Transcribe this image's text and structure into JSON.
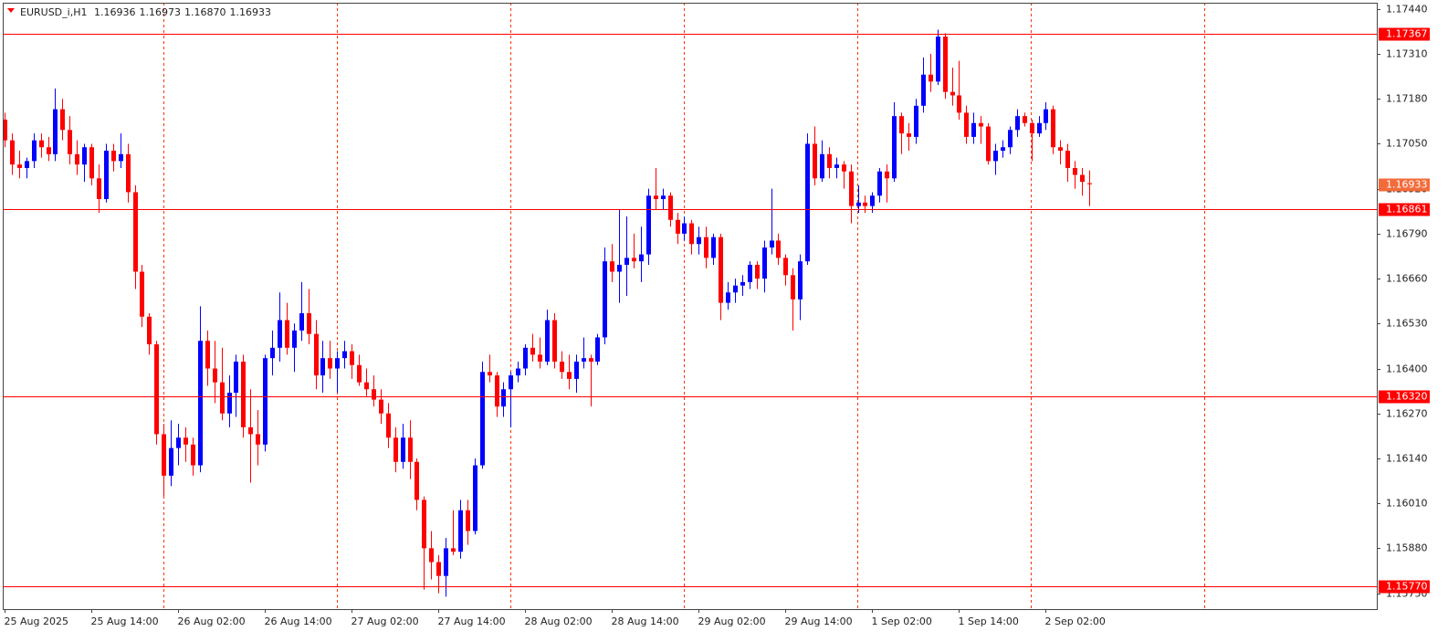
{
  "chart_data": {
    "type": "candlestick",
    "symbol": "EURUSD_i,H1",
    "info_labels": [
      "1.16936",
      "1.16973",
      "1.16870",
      "1.16933"
    ],
    "categories": [
      "25 Aug 2025",
      null,
      null,
      null,
      null,
      null,
      null,
      null,
      null,
      null,
      null,
      null,
      "25 Aug 14:00",
      null,
      null,
      null,
      null,
      null,
      null,
      null,
      null,
      null,
      null,
      null,
      "26 Aug 02:00",
      null,
      null,
      null,
      null,
      null,
      null,
      null,
      null,
      null,
      null,
      null,
      "26 Aug 14:00",
      null,
      null,
      null,
      null,
      null,
      null,
      null,
      null,
      null,
      null,
      null,
      "27 Aug 02:00",
      null,
      null,
      null,
      null,
      null,
      null,
      null,
      null,
      null,
      null,
      null,
      "27 Aug 14:00",
      null,
      null,
      null,
      null,
      null,
      null,
      null,
      null,
      null,
      null,
      null,
      "28 Aug 02:00",
      null,
      null,
      null,
      null,
      null,
      null,
      null,
      null,
      null,
      null,
      null,
      "28 Aug 14:00",
      null,
      null,
      null,
      null,
      null,
      null,
      null,
      null,
      null,
      null,
      null,
      "29 Aug 02:00",
      null,
      null,
      null,
      null,
      null,
      null,
      null,
      null,
      null,
      null,
      null,
      "29 Aug 14:00",
      null,
      null,
      null,
      null,
      null,
      null,
      null,
      null,
      null,
      null,
      null,
      "1 Sep 02:00",
      null,
      null,
      null,
      null,
      null,
      null,
      null,
      null,
      null,
      null,
      null,
      "1 Sep 14:00",
      null,
      null,
      null,
      null,
      null,
      null,
      null,
      null,
      null,
      null,
      null,
      "2 Sep 02:00",
      null,
      null,
      null,
      null,
      null,
      null
    ],
    "open": [
      1.1712,
      1.1706,
      1.1699,
      1.1698,
      1.17,
      1.1706,
      1.1704,
      1.1702,
      1.1715,
      1.1709,
      1.1702,
      1.1699,
      1.1704,
      1.1695,
      1.1689,
      1.1703,
      1.17,
      1.1702,
      1.1691,
      1.1668,
      1.1655,
      1.1647,
      1.1621,
      1.1609,
      1.1617,
      1.162,
      1.1618,
      1.1612,
      1.1648,
      1.164,
      1.1636,
      1.1627,
      1.1633,
      1.1642,
      1.1623,
      1.1621,
      1.1618,
      1.1643,
      1.1646,
      1.1654,
      1.1646,
      1.1651,
      1.1656,
      1.165,
      1.1638,
      1.1643,
      1.164,
      1.1643,
      1.1645,
      1.1641,
      1.1636,
      1.1634,
      1.1631,
      1.1627,
      1.162,
      1.1613,
      1.162,
      1.1613,
      1.1602,
      1.1588,
      1.1584,
      1.158,
      1.1588,
      1.1587,
      1.1599,
      1.1593,
      1.1612,
      1.1639,
      1.1638,
      1.1629,
      1.1634,
      1.1638,
      1.164,
      1.1646,
      1.1644,
      1.1642,
      1.1654,
      1.1642,
      1.1639,
      1.1637,
      1.1642,
      1.1643,
      1.1642,
      1.1649,
      1.1671,
      1.1668,
      1.167,
      1.1672,
      1.1671,
      1.1673,
      1.169,
      1.1689,
      1.169,
      1.1683,
      1.1679,
      1.1682,
      1.1676,
      1.1678,
      1.1672,
      1.1678,
      1.1659,
      1.1662,
      1.1664,
      1.1665,
      1.167,
      1.1666,
      1.1675,
      1.1677,
      1.1672,
      1.1667,
      1.166,
      1.1671,
      1.1705,
      1.1695,
      1.1702,
      1.1698,
      1.1699,
      1.1697,
      1.1687,
      1.1688,
      1.1687,
      1.169,
      1.1697,
      1.1695,
      1.1713,
      1.1708,
      1.1707,
      1.1716,
      1.1725,
      1.1723,
      1.1736,
      1.172,
      1.1719,
      1.1714,
      1.1707,
      1.1711,
      1.171,
      1.17,
      1.1703,
      1.1704,
      1.1709,
      1.1713,
      1.1711,
      1.1708,
      1.1711,
      1.1715,
      1.1704,
      1.1703,
      1.1698,
      1.1696,
      1.16936
    ],
    "high": [
      1.1714,
      1.1708,
      1.1703,
      1.1701,
      1.1708,
      1.1708,
      1.1707,
      1.1721,
      1.1718,
      1.1713,
      1.1706,
      1.1705,
      1.1705,
      1.1699,
      1.1705,
      1.1705,
      1.1708,
      1.1705,
      1.1693,
      1.167,
      1.1656,
      1.1648,
      1.1624,
      1.1625,
      1.1624,
      1.1623,
      1.162,
      1.1658,
      1.1651,
      1.1648,
      1.1646,
      1.1638,
      1.1644,
      1.1644,
      1.1634,
      1.1628,
      1.1644,
      1.1651,
      1.1662,
      1.1659,
      1.1653,
      1.1665,
      1.1663,
      1.1654,
      1.1648,
      1.1648,
      1.1645,
      1.1648,
      1.1647,
      1.1644,
      1.164,
      1.1638,
      1.1634,
      1.163,
      1.1623,
      1.1624,
      1.1625,
      1.1614,
      1.1603,
      1.1593,
      1.1586,
      1.1591,
      1.1599,
      1.1602,
      1.1602,
      1.1614,
      1.1642,
      1.1644,
      1.1639,
      1.1636,
      1.1639,
      1.1642,
      1.1647,
      1.165,
      1.1649,
      1.1657,
      1.1656,
      1.1645,
      1.1644,
      1.1644,
      1.1649,
      1.1644,
      1.165,
      1.1675,
      1.1676,
      1.1686,
      1.1684,
      1.1679,
      1.1681,
      1.1692,
      1.1698,
      1.1692,
      1.1691,
      1.1685,
      1.1684,
      1.1683,
      1.1681,
      1.1681,
      1.1679,
      1.1679,
      1.1665,
      1.1666,
      1.1667,
      1.1671,
      1.1671,
      1.1677,
      1.1692,
      1.1679,
      1.1673,
      1.1669,
      1.1673,
      1.1708,
      1.171,
      1.1706,
      1.1704,
      1.1701,
      1.17,
      1.1699,
      1.1693,
      1.169,
      1.1691,
      1.1698,
      1.1699,
      1.1717,
      1.1714,
      1.1711,
      1.1718,
      1.173,
      1.1731,
      1.1738,
      1.1737,
      1.1727,
      1.1729,
      1.1716,
      1.1714,
      1.1713,
      1.1711,
      1.1705,
      1.1706,
      1.171,
      1.1715,
      1.1714,
      1.1712,
      1.1713,
      1.1717,
      1.1716,
      1.1706,
      1.1705,
      1.17,
      1.1698,
      1.16973
    ],
    "low": [
      1.1704,
      1.1696,
      1.1695,
      1.1695,
      1.1698,
      1.1701,
      1.17,
      1.17,
      1.1706,
      1.1699,
      1.1696,
      1.1694,
      1.1693,
      1.1685,
      1.1688,
      1.1697,
      1.1698,
      1.1688,
      1.1663,
      1.1652,
      1.1644,
      1.1618,
      1.1603,
      1.1606,
      1.1612,
      1.1613,
      1.1609,
      1.161,
      1.1635,
      1.163,
      1.1625,
      1.1623,
      1.1626,
      1.162,
      1.1607,
      1.1612,
      1.1616,
      1.1638,
      1.1642,
      1.1644,
      1.1639,
      1.1648,
      1.1647,
      1.1634,
      1.1633,
      1.1637,
      1.1633,
      1.164,
      1.1637,
      1.1635,
      1.1632,
      1.1629,
      1.1624,
      1.1617,
      1.161,
      1.1611,
      1.1608,
      1.1599,
      1.1576,
      1.1579,
      1.1575,
      1.1574,
      1.1586,
      1.1585,
      1.1589,
      1.1592,
      1.1611,
      1.1636,
      1.1626,
      1.1626,
      1.1623,
      1.1636,
      1.1638,
      1.1642,
      1.164,
      1.1641,
      1.164,
      1.1637,
      1.1634,
      1.1633,
      1.164,
      1.1629,
      1.1641,
      1.1647,
      1.1665,
      1.1659,
      1.1661,
      1.1669,
      1.1665,
      1.167,
      1.1686,
      1.1686,
      1.1681,
      1.1676,
      1.1677,
      1.1673,
      1.1673,
      1.1669,
      1.167,
      1.1654,
      1.1657,
      1.1659,
      1.1661,
      1.1663,
      1.1663,
      1.1662,
      1.1673,
      1.167,
      1.1664,
      1.1651,
      1.1654,
      1.167,
      1.1693,
      1.1694,
      1.1695,
      1.1695,
      1.1692,
      1.1682,
      1.1685,
      1.1685,
      1.1685,
      1.1688,
      1.1688,
      1.1694,
      1.1702,
      1.1703,
      1.1705,
      1.1714,
      1.172,
      1.1722,
      1.1718,
      1.1716,
      1.1712,
      1.1705,
      1.1705,
      1.1705,
      1.1699,
      1.1696,
      1.1701,
      1.1702,
      1.1707,
      1.171,
      1.17,
      1.1707,
      1.1709,
      1.1702,
      1.1699,
      1.1694,
      1.1692,
      1.169,
      1.1687
    ],
    "close": [
      1.1706,
      1.1699,
      1.1698,
      1.17,
      1.1706,
      1.1704,
      1.1702,
      1.1715,
      1.1709,
      1.1702,
      1.1699,
      1.1704,
      1.1695,
      1.1689,
      1.1703,
      1.17,
      1.1702,
      1.1691,
      1.1668,
      1.1655,
      1.1647,
      1.1621,
      1.1609,
      1.1617,
      1.162,
      1.1618,
      1.1612,
      1.1648,
      1.164,
      1.1636,
      1.1627,
      1.1633,
      1.1642,
      1.1623,
      1.1621,
      1.1618,
      1.1643,
      1.1646,
      1.1654,
      1.1646,
      1.1651,
      1.1656,
      1.165,
      1.1638,
      1.1643,
      1.164,
      1.1643,
      1.1645,
      1.1641,
      1.1636,
      1.1634,
      1.1631,
      1.1627,
      1.162,
      1.1613,
      1.162,
      1.1613,
      1.1602,
      1.1588,
      1.1584,
      1.158,
      1.1588,
      1.1587,
      1.1599,
      1.1593,
      1.1612,
      1.1639,
      1.1638,
      1.1629,
      1.1634,
      1.1638,
      1.164,
      1.1646,
      1.1644,
      1.1642,
      1.1654,
      1.1642,
      1.1639,
      1.1637,
      1.1642,
      1.1643,
      1.1642,
      1.1649,
      1.1671,
      1.1668,
      1.167,
      1.1672,
      1.1671,
      1.1673,
      1.169,
      1.1689,
      1.169,
      1.1683,
      1.1679,
      1.1682,
      1.1676,
      1.1678,
      1.1672,
      1.1678,
      1.1659,
      1.1662,
      1.1664,
      1.1665,
      1.167,
      1.1666,
      1.1675,
      1.1677,
      1.1672,
      1.1667,
      1.166,
      1.1671,
      1.1705,
      1.1695,
      1.1702,
      1.1698,
      1.1699,
      1.1697,
      1.1687,
      1.1688,
      1.1687,
      1.169,
      1.1697,
      1.1695,
      1.1713,
      1.1708,
      1.1707,
      1.1716,
      1.1725,
      1.1723,
      1.1736,
      1.172,
      1.1719,
      1.1714,
      1.1707,
      1.1711,
      1.171,
      1.17,
      1.1703,
      1.1704,
      1.1709,
      1.1713,
      1.1711,
      1.1708,
      1.1711,
      1.1715,
      1.1704,
      1.1703,
      1.1698,
      1.1696,
      1.1694,
      1.16933
    ],
    "up_color": "#0000ff",
    "down_color": "#ff0000",
    "ylim": [
      1.15704,
      1.17458
    ],
    "yticks": [
      {
        "value": 1.1744,
        "label": "1.17440"
      },
      {
        "value": 1.1731,
        "label": "1.17310"
      },
      {
        "value": 1.1718,
        "label": "1.17180"
      },
      {
        "value": 1.1705,
        "label": "1.17050"
      },
      {
        "value": 1.1692,
        "label": "1.16920"
      },
      {
        "value": 1.1679,
        "label": "1.16790"
      },
      {
        "value": 1.1666,
        "label": "1.16660"
      },
      {
        "value": 1.1653,
        "label": "1.16530"
      },
      {
        "value": 1.164,
        "label": "1.16400"
      },
      {
        "value": 1.1627,
        "label": "1.16270"
      },
      {
        "value": 1.1614,
        "label": "1.16140"
      },
      {
        "value": 1.1601,
        "label": "1.16010"
      },
      {
        "value": 1.1588,
        "label": "1.15880"
      },
      {
        "value": 1.1575,
        "label": "1.15750"
      }
    ],
    "levels": [
      {
        "value": 1.17367,
        "label": "1.17367"
      },
      {
        "value": 1.16861,
        "label": "1.16861"
      },
      {
        "value": 1.1632,
        "label": "1.16320"
      },
      {
        "value": 1.1577,
        "label": "1.15770"
      }
    ],
    "level_color": "#ff0000",
    "price_label": {
      "value": 1.16933,
      "label": "1.16933"
    },
    "price_color": "#f26b3a"
  }
}
